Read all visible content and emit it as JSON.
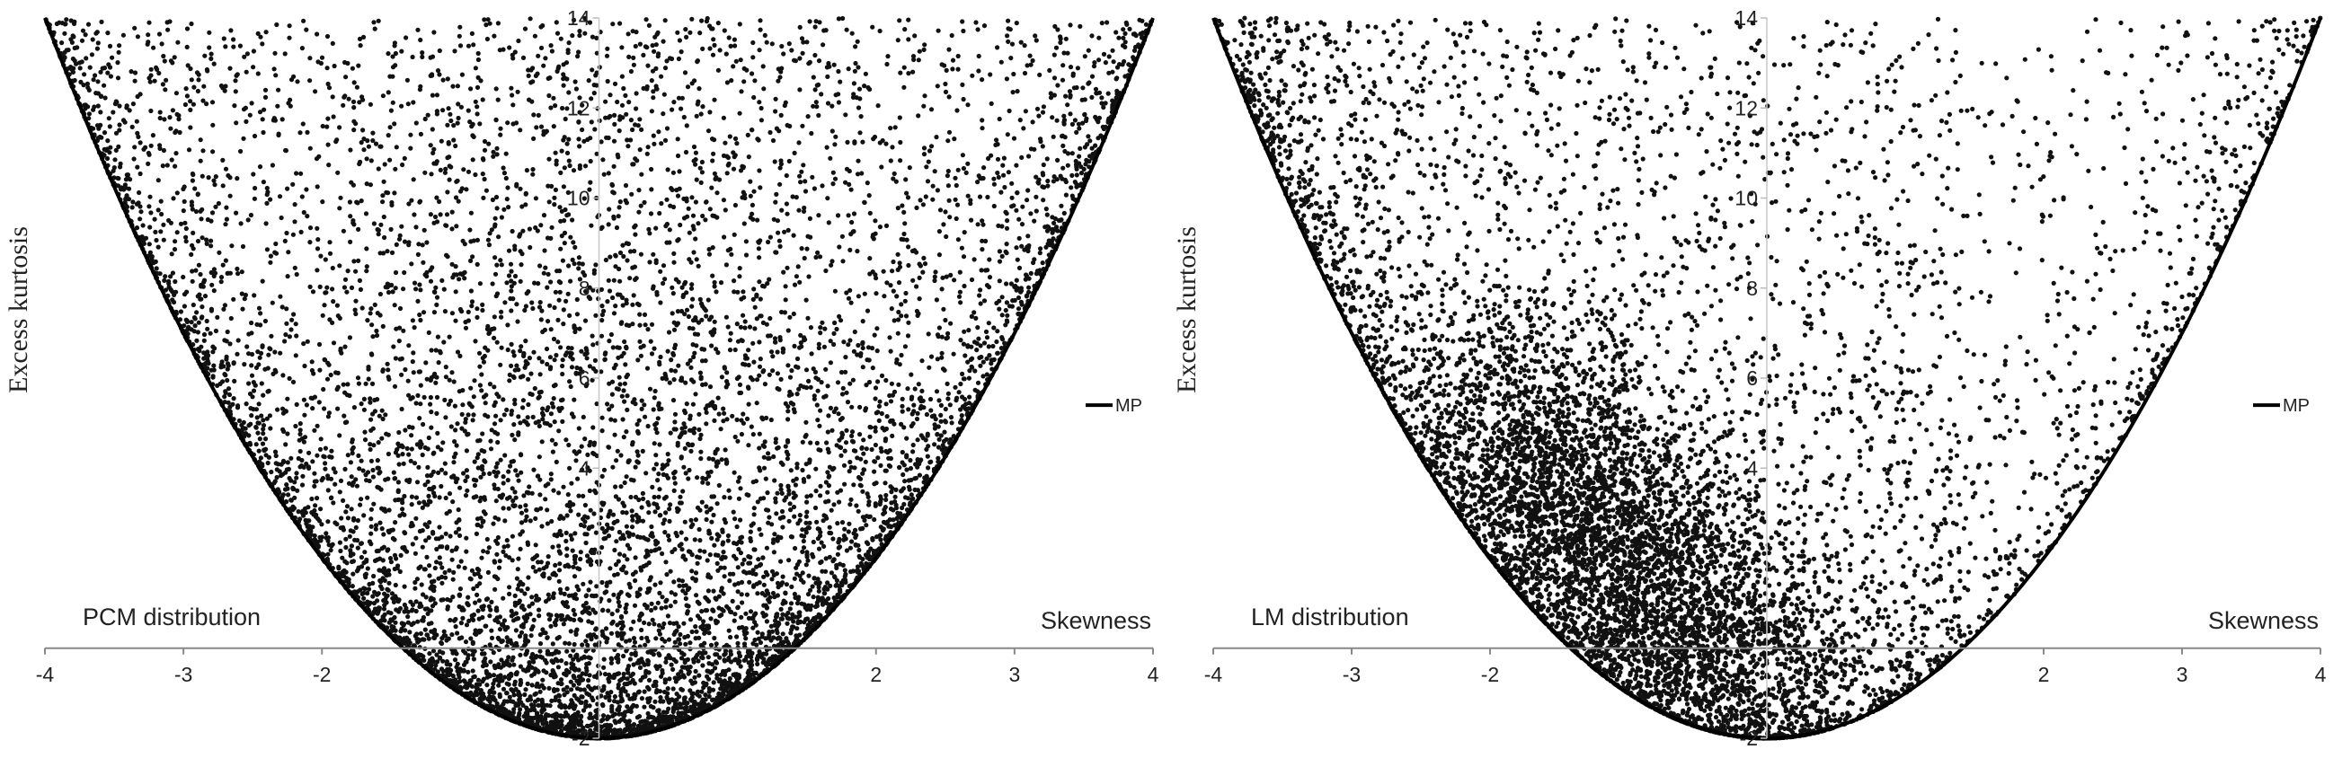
{
  "chart_data": [
    {
      "type": "scatter",
      "title": "",
      "annotation": "PCM distribution",
      "xlabel": "Skewness",
      "ylabel": "Excess kurtosis",
      "xlim": [
        -4,
        4
      ],
      "ylim": [
        -2,
        14
      ],
      "x_ticks": [
        "-4",
        "-3",
        "-2",
        "2",
        "3",
        "4"
      ],
      "y_ticks": [
        "-2",
        "4",
        "6",
        "8",
        "10",
        "12",
        "14"
      ],
      "grid": false,
      "legend": {
        "position": "right",
        "entries": [
          "MP"
        ]
      },
      "boundary": {
        "name": "MP",
        "equation": "kurtosis = skewness^2 - 2"
      },
      "point_color": "#111111",
      "cluster": {
        "skewness": 0.0,
        "spread": "symmetric about 0, densest near the boundary"
      }
    },
    {
      "type": "scatter",
      "title": "",
      "annotation": "LM distribution",
      "xlabel": "Skewness",
      "ylabel": "Excess kurtosis",
      "xlim": [
        -4,
        4
      ],
      "ylim": [
        -2,
        14
      ],
      "x_ticks": [
        "-4",
        "-3",
        "-2",
        "2",
        "3",
        "4"
      ],
      "y_ticks": [
        "-2",
        "4",
        "6",
        "8",
        "10",
        "12",
        "14"
      ],
      "grid": false,
      "legend": {
        "position": "right",
        "entries": [
          "MP"
        ]
      },
      "boundary": {
        "name": "MP",
        "equation": "kurtosis = skewness^2 - 2"
      },
      "point_color": "#111111",
      "cluster": {
        "skewness": -1.0,
        "spread": "skewed to negative skewness, dense band from (-2, 5) to (0, -1.5)"
      }
    }
  ]
}
